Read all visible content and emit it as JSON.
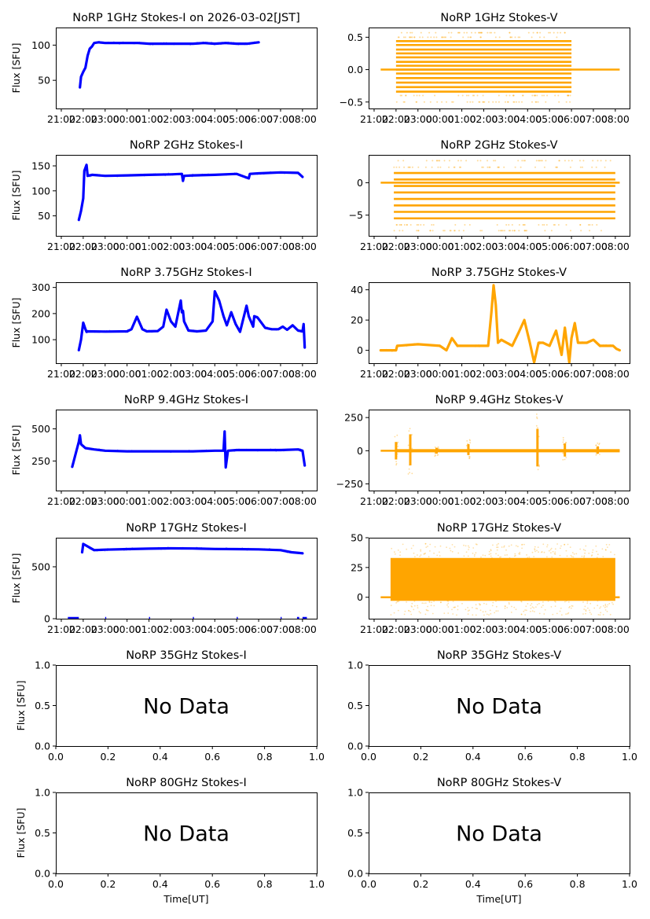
{
  "figure": {
    "date_label": "2026-03-02[JST]",
    "xlabel_bottom": "Time[UT]",
    "no_data_text": "No Data",
    "colors": {
      "stokes_i": "#0000ff",
      "stokes_v": "#ffa500",
      "axes": "#000000"
    }
  },
  "chart_data": [
    {
      "type": "scatter",
      "title": "NoRP 1GHz Stokes-I on 2026-03-02[JST]",
      "ylabel": "Flux [SFU]",
      "xlabel": "",
      "ylim": [
        10,
        125
      ],
      "yticks": [
        50,
        100
      ],
      "ytick_labels": [
        "50",
        "100"
      ],
      "xlim_hours": [
        -3.25,
        8.65
      ],
      "xticks_hours": [
        -3,
        -2,
        -1,
        0,
        1,
        2,
        3,
        4,
        5,
        6,
        7,
        8
      ],
      "xtick_labels": [
        "21:00",
        "22:00",
        "23:00",
        "00:00",
        "01:00",
        "02:00",
        "03:00",
        "04:00",
        "05:00",
        "06:00",
        "07:00",
        "08:00"
      ],
      "color": "#0000ff",
      "series": [
        {
          "name": "Stokes-I",
          "x": [
            -2.15,
            -2.1,
            -2.0,
            -1.9,
            -1.8,
            -1.7,
            -1.6,
            -1.5,
            -1.3,
            -1.0,
            -0.5,
            0,
            0.5,
            1,
            1.5,
            2,
            2.5,
            3,
            3.5,
            4,
            4.5,
            5,
            5.5,
            6.0
          ],
          "y": [
            40,
            55,
            62,
            68,
            85,
            95,
            98,
            103,
            104,
            103,
            103,
            103,
            103,
            102,
            102,
            102,
            102,
            102,
            103,
            102,
            103,
            102,
            102,
            104
          ]
        }
      ]
    },
    {
      "type": "scatter",
      "title": "NoRP 1GHz Stokes-V",
      "ylabel": "",
      "xlabel": "",
      "ylim": [
        -0.6,
        0.65
      ],
      "yticks": [
        -0.5,
        0.0,
        0.5
      ],
      "ytick_labels": [
        "−0.5",
        "0.0",
        "0.5"
      ],
      "xlim_hours": [
        -3.25,
        8.65
      ],
      "xticks_hours": [
        -3,
        -2,
        -1,
        0,
        1,
        2,
        3,
        4,
        5,
        6,
        7,
        8
      ],
      "xtick_labels": [
        "21:00",
        "22:00",
        "23:00",
        "00:00",
        "01:00",
        "02:00",
        "03:00",
        "04:00",
        "05:00",
        "06:00",
        "07:00",
        "08:00"
      ],
      "color": "#ffa500",
      "style": "quantized-bands",
      "series": [
        {
          "name": "Stokes-V",
          "baseline": {
            "x": [
              -2.7,
              8.2
            ],
            "y": 0
          },
          "band_x": [
            -2.0,
            6.0
          ],
          "levels": [
            -0.34,
            -0.27,
            -0.2,
            -0.13,
            -0.06,
            0.0,
            0.06,
            0.12,
            0.19,
            0.25,
            0.31,
            0.38,
            0.44
          ],
          "sparse_levels": [
            -0.5,
            -0.4,
            0.5,
            0.57
          ]
        }
      ]
    },
    {
      "type": "scatter",
      "title": "NoRP 2GHz Stokes-I",
      "ylabel": "Flux [SFU]",
      "xlabel": "",
      "ylim": [
        10,
        172
      ],
      "yticks": [
        50,
        100,
        150
      ],
      "ytick_labels": [
        "50",
        "100",
        "150"
      ],
      "xlim_hours": [
        -3.25,
        8.65
      ],
      "xticks_hours": [
        -3,
        -2,
        -1,
        0,
        1,
        2,
        3,
        4,
        5,
        6,
        7,
        8
      ],
      "xtick_labels": [
        "21:00",
        "22:00",
        "23:00",
        "00:00",
        "01:00",
        "02:00",
        "03:00",
        "04:00",
        "05:00",
        "06:00",
        "07:00",
        "08:00"
      ],
      "color": "#0000ff",
      "series": [
        {
          "name": "Stokes-I",
          "x": [
            -2.2,
            -2.1,
            -2.0,
            -1.95,
            -1.85,
            -1.8,
            -1.6,
            -1.0,
            0,
            1,
            2,
            2.5,
            2.55,
            2.6,
            3,
            4,
            5,
            5.55,
            5.6,
            6,
            7,
            7.8,
            8.0
          ],
          "y": [
            42,
            60,
            85,
            140,
            152,
            130,
            132,
            130,
            131,
            132,
            133,
            134,
            120,
            130,
            131,
            132,
            134,
            125,
            134,
            135,
            137,
            136,
            128
          ]
        }
      ]
    },
    {
      "type": "scatter",
      "title": "NoRP 2GHz Stokes-V",
      "ylabel": "",
      "xlabel": "",
      "ylim": [
        -8.2,
        4.3
      ],
      "yticks": [
        -5,
        0
      ],
      "ytick_labels": [
        "−5",
        "0"
      ],
      "xlim_hours": [
        -3.25,
        8.65
      ],
      "xticks_hours": [
        -3,
        -2,
        -1,
        0,
        1,
        2,
        3,
        4,
        5,
        6,
        7,
        8
      ],
      "xtick_labels": [
        "21:00",
        "22:00",
        "23:00",
        "00:00",
        "01:00",
        "02:00",
        "03:00",
        "04:00",
        "05:00",
        "06:00",
        "07:00",
        "08:00"
      ],
      "color": "#ffa500",
      "style": "quantized-bands",
      "series": [
        {
          "name": "Stokes-V",
          "baseline": {
            "x": [
              -2.7,
              8.2
            ],
            "y": 0
          },
          "band_x": [
            -2.1,
            8.0
          ],
          "levels": [
            -5.5,
            -4.5,
            -3.5,
            -2.5,
            -1.5,
            -0.5,
            0.5,
            1.5
          ],
          "sparse_levels": [
            -7.4,
            -6.5,
            2.4,
            3.4
          ]
        }
      ]
    },
    {
      "type": "scatter",
      "title": "NoRP 3.75GHz Stokes-I",
      "ylabel": "Flux [SFU]",
      "xlabel": "",
      "ylim": [
        10,
        320
      ],
      "yticks": [
        100,
        200,
        300
      ],
      "ytick_labels": [
        "100",
        "200",
        "300"
      ],
      "xlim_hours": [
        -3.25,
        8.65
      ],
      "xticks_hours": [
        -3,
        -2,
        -1,
        0,
        1,
        2,
        3,
        4,
        5,
        6,
        7,
        8
      ],
      "xtick_labels": [
        "21:00",
        "22:00",
        "23:00",
        "00:00",
        "01:00",
        "02:00",
        "03:00",
        "04:00",
        "05:00",
        "06:00",
        "07:00",
        "08:00"
      ],
      "color": "#0000ff",
      "series": [
        {
          "name": "Stokes-I",
          "x": [
            -2.2,
            -2.1,
            -2.0,
            -1.9,
            -1.85,
            -1.8,
            -1.0,
            0.0,
            0.2,
            0.45,
            0.7,
            0.9,
            1.4,
            1.65,
            1.8,
            2.0,
            2.2,
            2.45,
            2.5,
            2.55,
            2.6,
            2.8,
            3.2,
            3.6,
            3.9,
            4.0,
            4.2,
            4.4,
            4.55,
            4.75,
            4.95,
            5.15,
            5.45,
            5.55,
            5.75,
            5.8,
            5.95,
            6.3,
            6.6,
            6.9,
            7.1,
            7.3,
            7.55,
            7.8,
            8.0,
            8.05,
            8.1
          ],
          "y": [
            60,
            100,
            165,
            140,
            130,
            132,
            131,
            132,
            140,
            188,
            140,
            132,
            133,
            150,
            215,
            170,
            150,
            250,
            205,
            210,
            170,
            135,
            132,
            135,
            170,
            285,
            250,
            190,
            155,
            205,
            160,
            130,
            230,
            190,
            150,
            190,
            185,
            145,
            140,
            140,
            150,
            138,
            155,
            135,
            132,
            160,
            70
          ]
        }
      ]
    },
    {
      "type": "scatter",
      "title": "NoRP 3.75GHz Stokes-V",
      "ylabel": "",
      "xlabel": "",
      "ylim": [
        -8.5,
        45
      ],
      "yticks": [
        0,
        20,
        40
      ],
      "ytick_labels": [
        "0",
        "20",
        "40"
      ],
      "xlim_hours": [
        -3.25,
        8.65
      ],
      "xticks_hours": [
        -3,
        -2,
        -1,
        0,
        1,
        2,
        3,
        4,
        5,
        6,
        7,
        8
      ],
      "xtick_labels": [
        "21:00",
        "22:00",
        "23:00",
        "00:00",
        "01:00",
        "02:00",
        "03:00",
        "04:00",
        "05:00",
        "06:00",
        "07:00",
        "08:00"
      ],
      "color": "#ffa500",
      "series": [
        {
          "name": "Stokes-V",
          "x": [
            -2.7,
            -2.0,
            -1.95,
            -1.0,
            0,
            0.3,
            0.55,
            0.8,
            1.5,
            2.2,
            2.35,
            2.45,
            2.55,
            2.65,
            2.8,
            3.3,
            3.6,
            3.85,
            4.1,
            4.3,
            4.5,
            4.7,
            5.0,
            5.3,
            5.55,
            5.7,
            5.9,
            6.0,
            6.15,
            6.3,
            6.7,
            7.0,
            7.3,
            7.6,
            7.9,
            8.05,
            8.2
          ],
          "y": [
            0,
            0,
            3,
            4,
            3,
            0,
            8,
            3,
            3,
            3,
            25,
            43,
            30,
            5,
            7,
            3,
            12,
            20,
            5,
            -8,
            5,
            5,
            3,
            13,
            -3,
            15,
            -8,
            8,
            18,
            5,
            5,
            7,
            3,
            3,
            3,
            1,
            0
          ]
        }
      ]
    },
    {
      "type": "scatter",
      "title": "NoRP 9.4GHz Stokes-I",
      "ylabel": "Flux [SFU]",
      "xlabel": "",
      "ylim": [
        20,
        650
      ],
      "yticks": [
        250,
        500
      ],
      "ytick_labels": [
        "250",
        "500"
      ],
      "xlim_hours": [
        -3.25,
        8.65
      ],
      "xticks_hours": [
        -3,
        -2,
        -1,
        0,
        1,
        2,
        3,
        4,
        5,
        6,
        7,
        8
      ],
      "xtick_labels": [
        "21:00",
        "22:00",
        "23:00",
        "00:00",
        "01:00",
        "02:00",
        "03:00",
        "04:00",
        "05:00",
        "06:00",
        "07:00",
        "08:00"
      ],
      "color": "#0000ff",
      "series": [
        {
          "name": "Stokes-I",
          "x": [
            -2.5,
            -2.2,
            -2.15,
            -2.1,
            -1.9,
            -1.5,
            -1.0,
            0,
            1,
            2,
            3,
            4,
            4.4,
            4.45,
            4.5,
            4.6,
            5,
            6,
            7,
            7.8,
            8.0,
            8.1
          ],
          "y": [
            205,
            400,
            450,
            380,
            350,
            340,
            330,
            325,
            325,
            325,
            325,
            330,
            330,
            480,
            200,
            330,
            335,
            335,
            335,
            340,
            330,
            215
          ]
        }
      ]
    },
    {
      "type": "scatter",
      "title": "NoRP 9.4GHz Stokes-V",
      "ylabel": "",
      "xlabel": "",
      "ylim": [
        -300,
        310
      ],
      "yticks": [
        -250,
        0,
        250
      ],
      "ytick_labels": [
        "−250",
        "0",
        "250"
      ],
      "xlim_hours": [
        -3.25,
        8.65
      ],
      "xticks_hours": [
        -3,
        -2,
        -1,
        0,
        1,
        2,
        3,
        4,
        5,
        6,
        7,
        8
      ],
      "xtick_labels": [
        "21:00",
        "22:00",
        "23:00",
        "00:00",
        "01:00",
        "02:00",
        "03:00",
        "04:00",
        "05:00",
        "06:00",
        "07:00",
        "08:00"
      ],
      "color": "#ffa500",
      "series": [
        {
          "name": "Stokes-V",
          "baseline": {
            "x": [
              -2.7,
              8.2
            ],
            "y": 0
          },
          "spikes": [
            {
              "x": -2.0,
              "min": -120,
              "max": 120
            },
            {
              "x": -1.35,
              "min": -200,
              "max": 225
            },
            {
              "x": -0.15,
              "min": -40,
              "max": 40
            },
            {
              "x": 1.3,
              "min": -60,
              "max": 90
            },
            {
              "x": 4.45,
              "min": -215,
              "max": 300
            },
            {
              "x": 5.7,
              "min": -80,
              "max": 100
            },
            {
              "x": 7.2,
              "min": -40,
              "max": 60
            }
          ]
        }
      ]
    },
    {
      "type": "scatter",
      "title": "NoRP 17GHz Stokes-I",
      "ylabel": "Flux [SFU]",
      "xlabel": "",
      "ylim": [
        0,
        780
      ],
      "yticks": [
        0,
        500
      ],
      "ytick_labels": [
        "0",
        "500"
      ],
      "xlim_hours": [
        -3.25,
        8.65
      ],
      "xticks_hours": [
        -3,
        -2,
        -1,
        0,
        1,
        2,
        3,
        4,
        5,
        6,
        7,
        8
      ],
      "xtick_labels": [
        "21:00",
        "22:00",
        "23:00",
        "00:00",
        "01:00",
        "02:00",
        "03:00",
        "04:00",
        "05:00",
        "06:00",
        "07:00",
        "08:00"
      ],
      "color": "#0000ff",
      "series": [
        {
          "name": "Stokes-I",
          "x": [
            -2.05,
            -2.0,
            -1.5,
            -1.0,
            0,
            1,
            2,
            3,
            4,
            5,
            6,
            7,
            7.5,
            8.0
          ],
          "y": [
            640,
            720,
            660,
            665,
            670,
            675,
            678,
            676,
            672,
            670,
            668,
            660,
            640,
            630
          ]
        }
      ]
    },
    {
      "type": "scatter",
      "title": "NoRP 17GHz Stokes-V",
      "ylabel": "",
      "xlabel": "",
      "ylim": [
        -18,
        50
      ],
      "yticks": [
        0,
        25,
        50
      ],
      "ytick_labels": [
        "0",
        "25",
        "50"
      ],
      "xlim_hours": [
        -3.25,
        8.65
      ],
      "xticks_hours": [
        -3,
        -2,
        -1,
        0,
        1,
        2,
        3,
        4,
        5,
        6,
        7,
        8
      ],
      "xtick_labels": [
        "21:00",
        "22:00",
        "23:00",
        "00:00",
        "01:00",
        "02:00",
        "03:00",
        "04:00",
        "05:00",
        "06:00",
        "07:00",
        "08:00"
      ],
      "color": "#ffa500",
      "series": [
        {
          "name": "Stokes-V",
          "baseline": {
            "x": [
              -2.7,
              8.2
            ],
            "y": 0
          },
          "band": {
            "x": [
              -2.25,
              8.0
            ],
            "ymin": -3,
            "ymax": 33
          },
          "scatter_range": [
            -15,
            45
          ]
        }
      ]
    },
    {
      "type": "empty",
      "title": "NoRP 35GHz Stokes-I",
      "ylabel": "Flux [SFU]",
      "xlabel": "",
      "ylim": [
        0,
        1
      ],
      "yticks": [
        0,
        0.5,
        1.0
      ],
      "ytick_labels": [
        "0.0",
        "0.5",
        "1.0"
      ],
      "xlim": [
        0,
        1
      ],
      "xticks": [
        0,
        0.2,
        0.4,
        0.6,
        0.8,
        1.0
      ],
      "xtick_labels": [
        "0.0",
        "0.2",
        "0.4",
        "0.6",
        "0.8",
        "1.0"
      ],
      "annotation": "No Data"
    },
    {
      "type": "empty",
      "title": "NoRP 35GHz Stokes-V",
      "ylabel": "",
      "xlabel": "",
      "ylim": [
        0,
        1
      ],
      "yticks": [
        0,
        0.5,
        1.0
      ],
      "ytick_labels": [
        "0.0",
        "0.5",
        "1.0"
      ],
      "xlim": [
        0,
        1
      ],
      "xticks": [
        0,
        0.2,
        0.4,
        0.6,
        0.8,
        1.0
      ],
      "xtick_labels": [
        "0.0",
        "0.2",
        "0.4",
        "0.6",
        "0.8",
        "1.0"
      ],
      "annotation": "No Data"
    },
    {
      "type": "empty",
      "title": "NoRP 80GHz Stokes-I",
      "ylabel": "Flux [SFU]",
      "xlabel": "Time[UT]",
      "ylim": [
        0,
        1
      ],
      "yticks": [
        0,
        0.5,
        1.0
      ],
      "ytick_labels": [
        "0.0",
        "0.5",
        "1.0"
      ],
      "xlim": [
        0,
        1
      ],
      "xticks": [
        0,
        0.2,
        0.4,
        0.6,
        0.8,
        1.0
      ],
      "xtick_labels": [
        "0.0",
        "0.2",
        "0.4",
        "0.6",
        "0.8",
        "1.0"
      ],
      "annotation": "No Data"
    },
    {
      "type": "empty",
      "title": "NoRP 80GHz Stokes-V",
      "ylabel": "",
      "xlabel": "Time[UT]",
      "ylim": [
        0,
        1
      ],
      "yticks": [
        0,
        0.5,
        1.0
      ],
      "ytick_labels": [
        "0.0",
        "0.5",
        "1.0"
      ],
      "xlim": [
        0,
        1
      ],
      "xticks": [
        0,
        0.2,
        0.4,
        0.6,
        0.8,
        1.0
      ],
      "xtick_labels": [
        "0.0",
        "0.2",
        "0.4",
        "0.6",
        "0.8",
        "1.0"
      ],
      "annotation": "No Data"
    }
  ]
}
